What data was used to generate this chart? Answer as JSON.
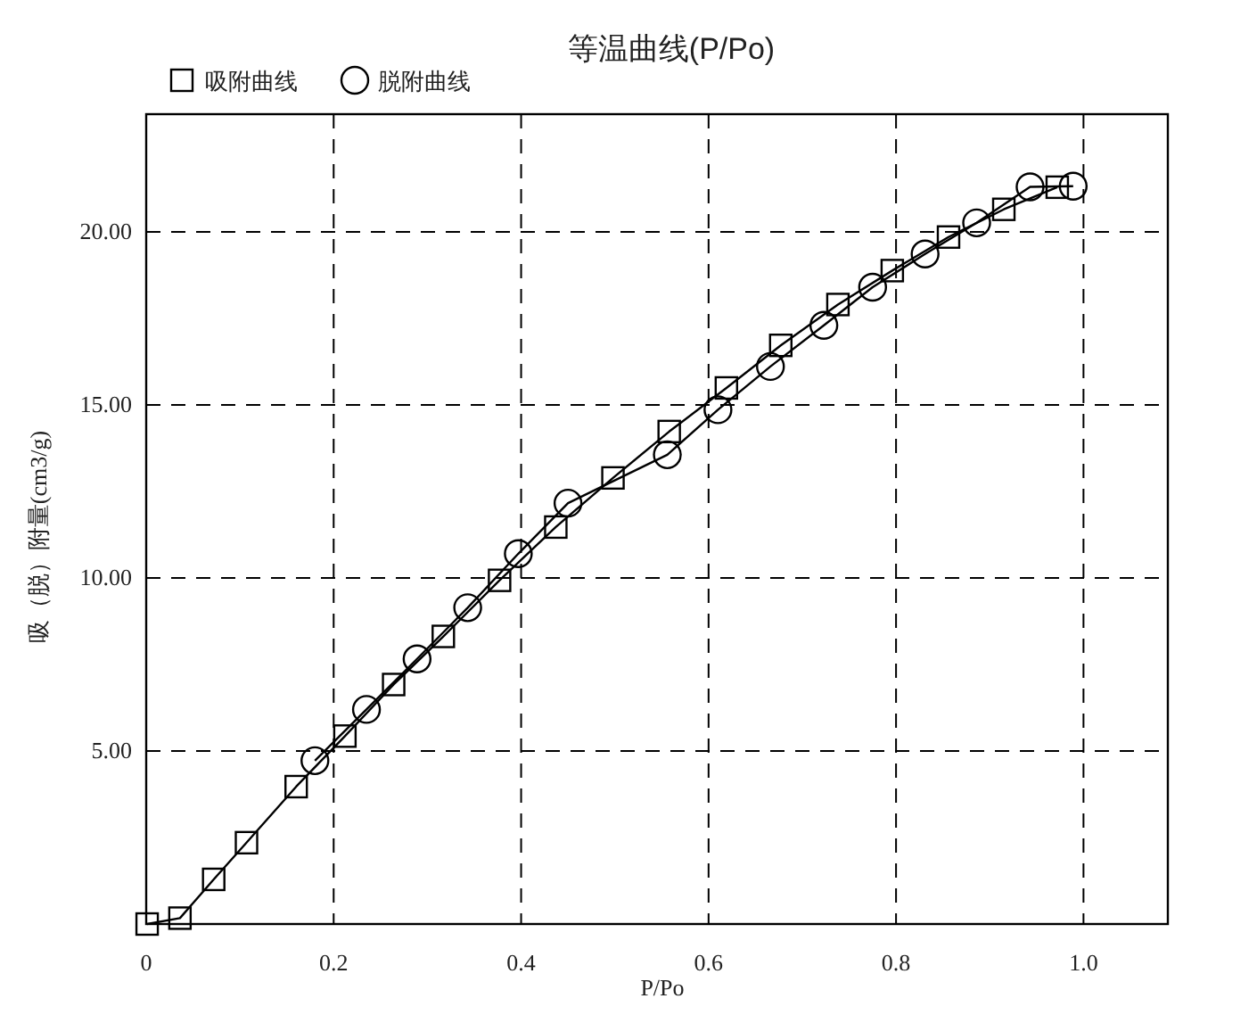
{
  "chart_data": {
    "type": "line",
    "title": "等温曲线(P/Po)",
    "xlabel": "P/Po",
    "ylabel": "吸（脱）附量(cm3/g)",
    "xlim": [
      0,
      1.09
    ],
    "ylim": [
      0,
      23.4
    ],
    "xticks": [
      0,
      {
        "value": 0.2,
        "label": "0.2"
      },
      {
        "value": 0.4,
        "label": "0.4"
      },
      {
        "value": 0.6,
        "label": "0.6"
      },
      {
        "value": 0.8,
        "label": "0.8"
      },
      {
        "value": 1,
        "label": "1.0"
      }
    ],
    "yticks": [
      {
        "value": 5,
        "label": "5.00"
      },
      {
        "value": 10,
        "label": "10.00"
      },
      {
        "value": 15,
        "label": "15.00"
      },
      {
        "value": 20,
        "label": "20.00"
      }
    ],
    "grid": true,
    "legend": "top left",
    "series": [
      {
        "name": "吸附曲线",
        "color": "#000000",
        "marker": "square",
        "x": [
          0.001,
          0.036,
          0.072,
          0.107,
          0.16,
          0.212,
          0.264,
          0.317,
          0.377,
          0.437,
          0.498,
          0.558,
          0.619,
          0.677,
          0.738,
          0.796,
          0.856,
          0.915,
          0.972
        ],
        "values": [
          0.0,
          0.17,
          1.29,
          2.35,
          3.97,
          5.43,
          6.92,
          8.31,
          9.93,
          11.47,
          12.89,
          14.23,
          15.49,
          16.72,
          17.9,
          18.88,
          19.85,
          20.65,
          21.29
        ]
      },
      {
        "name": "脱附曲线",
        "color": "#000000",
        "marker": "circle",
        "x": [
          0.989,
          0.943,
          0.886,
          0.831,
          0.775,
          0.723,
          0.666,
          0.61,
          0.556,
          0.45,
          0.397,
          0.343,
          0.289,
          0.235,
          0.18
        ],
        "values": [
          21.32,
          21.3,
          20.26,
          19.36,
          18.4,
          17.3,
          16.11,
          14.86,
          13.56,
          12.16,
          10.7,
          9.14,
          7.66,
          6.2,
          4.72
        ]
      }
    ]
  }
}
